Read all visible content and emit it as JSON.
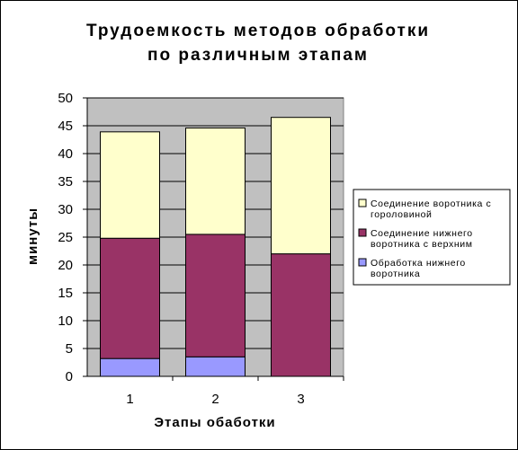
{
  "chart_data": {
    "type": "bar",
    "stacked": true,
    "title_lines": [
      "Трудоемкость методов обработки",
      "по различным этапам"
    ],
    "xlabel": "Этапы обаботки",
    "ylabel": "минуты",
    "categories": [
      "1",
      "2",
      "3"
    ],
    "ylim": [
      0,
      50
    ],
    "yticks": [
      0,
      5,
      10,
      15,
      20,
      25,
      30,
      35,
      40,
      45,
      50
    ],
    "grid": true,
    "legend_position": "right",
    "series": [
      {
        "name": "Обработка нижнего воротника",
        "values": [
          3.2,
          3.5,
          0
        ],
        "color": "#9999ff"
      },
      {
        "name": "Соединение нижнего воротника с верхним",
        "values": [
          21.6,
          22.0,
          22.0
        ],
        "color": "#993366"
      },
      {
        "name": "Соединение воротника с гороловиной",
        "values": [
          19.1,
          19.1,
          24.5
        ],
        "color": "#ffffcc"
      }
    ],
    "legend_lines": [
      [
        "Соединение воротника с",
        "гороловиной"
      ],
      [
        "Соединение нижнего",
        "воротника с верхним"
      ],
      [
        "Обработка нижнего",
        "воротника"
      ]
    ],
    "colors": {
      "plot_background": "#c0c0c0",
      "gridline": "#000000",
      "axis": "#808080"
    }
  }
}
